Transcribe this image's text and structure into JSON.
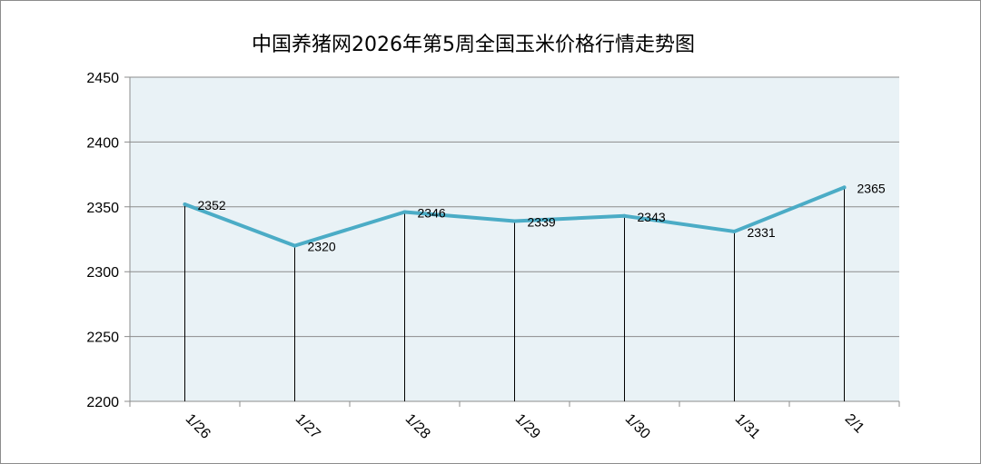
{
  "chart_data": {
    "type": "line",
    "title": "中国养猪网2026年第5周全国玉米价格行情走势图",
    "categories": [
      "1/26",
      "1/27",
      "1/28",
      "1/29",
      "1/30",
      "1/31",
      "2/1"
    ],
    "values": [
      2352,
      2320,
      2346,
      2339,
      2343,
      2331,
      2365
    ],
    "data_labels": [
      "2352",
      "2320",
      "2346",
      "2339",
      "2343",
      "2331",
      "2365"
    ],
    "y_ticks": [
      2200,
      2250,
      2300,
      2350,
      2400,
      2450
    ],
    "ylim": [
      2200,
      2450
    ],
    "xlabel": "",
    "ylabel": "",
    "grid": true,
    "drop_lines": true,
    "colors": {
      "line": "#4bacc6",
      "plot_background": "#e9f2f6",
      "gridline": "#8c8c8c",
      "drop_line": "#000000"
    }
  }
}
